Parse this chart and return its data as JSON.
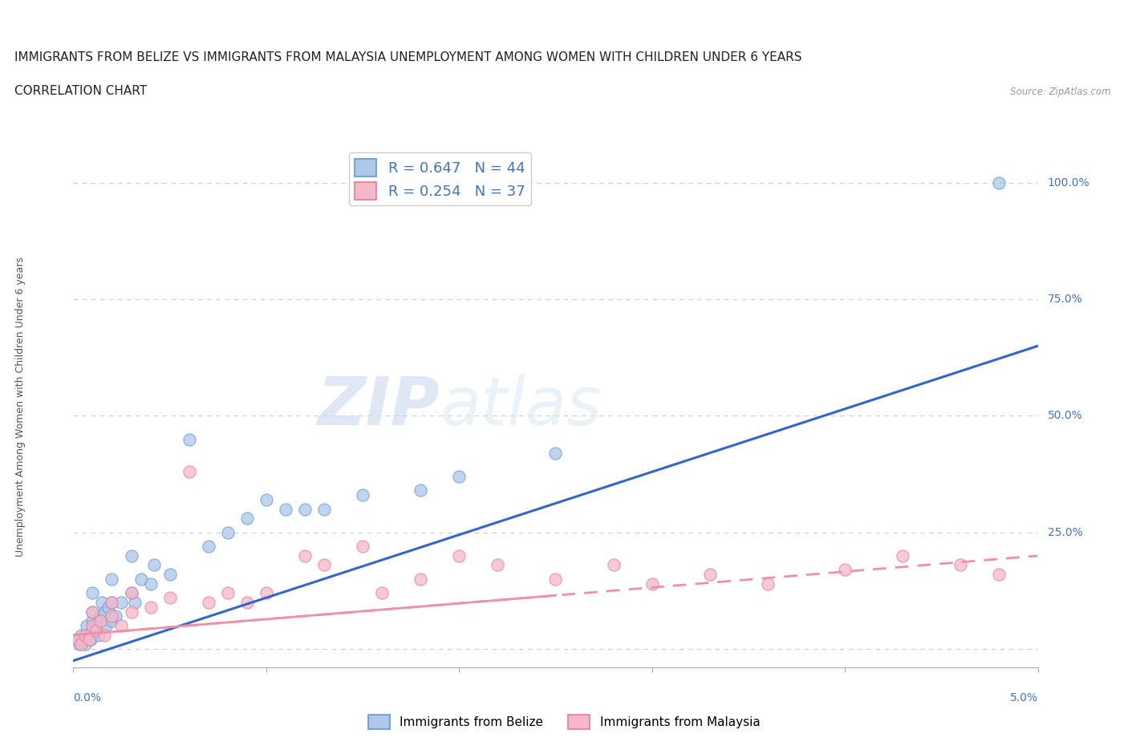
{
  "title_line1": "IMMIGRANTS FROM BELIZE VS IMMIGRANTS FROM MALAYSIA UNEMPLOYMENT AMONG WOMEN WITH CHILDREN UNDER 6 YEARS",
  "title_line2": "CORRELATION CHART",
  "source": "Source: ZipAtlas.com",
  "ylabel": "Unemployment Among Women with Children Under 6 years",
  "watermark_part1": "ZIP",
  "watermark_part2": "atlas",
  "legend_belize": {
    "R": 0.647,
    "N": 44,
    "color": "#aec6e8",
    "border": "#5b9bd5"
  },
  "legend_malaysia": {
    "R": 0.254,
    "N": 37,
    "color": "#f5b8c8",
    "border": "#e87898"
  },
  "belize_fill_color": "#aec6e8",
  "belize_edge_color": "#5b9bd5",
  "malaysia_fill_color": "#f5b8c8",
  "malaysia_edge_color": "#e87898",
  "belize_line_color": "#3366cc",
  "malaysia_line_color": "#f090a8",
  "yticks": [
    0.0,
    0.25,
    0.5,
    0.75,
    1.0
  ],
  "ytick_labels": [
    "",
    "25.0%",
    "50.0%",
    "75.0%",
    "100.0%"
  ],
  "xlim": [
    0.0,
    0.05
  ],
  "ylim": [
    -0.04,
    1.08
  ],
  "belize_scatter_x": [
    0.0002,
    0.0003,
    0.0004,
    0.0005,
    0.0006,
    0.0007,
    0.0008,
    0.0009,
    0.001,
    0.001,
    0.001,
    0.001,
    0.0012,
    0.0013,
    0.0014,
    0.0015,
    0.0016,
    0.0017,
    0.0018,
    0.002,
    0.002,
    0.002,
    0.0022,
    0.0025,
    0.003,
    0.003,
    0.0032,
    0.0035,
    0.004,
    0.0042,
    0.005,
    0.006,
    0.007,
    0.008,
    0.009,
    0.01,
    0.011,
    0.012,
    0.013,
    0.015,
    0.018,
    0.02,
    0.025,
    0.048
  ],
  "belize_scatter_y": [
    0.02,
    0.01,
    0.03,
    0.02,
    0.01,
    0.05,
    0.03,
    0.02,
    0.04,
    0.06,
    0.08,
    0.12,
    0.05,
    0.03,
    0.07,
    0.1,
    0.08,
    0.05,
    0.09,
    0.06,
    0.1,
    0.15,
    0.07,
    0.1,
    0.12,
    0.2,
    0.1,
    0.15,
    0.14,
    0.18,
    0.16,
    0.45,
    0.22,
    0.25,
    0.28,
    0.32,
    0.3,
    0.3,
    0.3,
    0.33,
    0.34,
    0.37,
    0.42,
    1.0
  ],
  "malaysia_scatter_x": [
    0.0002,
    0.0004,
    0.0006,
    0.0008,
    0.001,
    0.001,
    0.0012,
    0.0014,
    0.0016,
    0.002,
    0.002,
    0.0025,
    0.003,
    0.003,
    0.004,
    0.005,
    0.006,
    0.007,
    0.008,
    0.009,
    0.01,
    0.012,
    0.013,
    0.015,
    0.016,
    0.018,
    0.02,
    0.022,
    0.025,
    0.028,
    0.03,
    0.033,
    0.036,
    0.04,
    0.043,
    0.046,
    0.048
  ],
  "malaysia_scatter_y": [
    0.02,
    0.01,
    0.03,
    0.02,
    0.05,
    0.08,
    0.04,
    0.06,
    0.03,
    0.07,
    0.1,
    0.05,
    0.08,
    0.12,
    0.09,
    0.11,
    0.38,
    0.1,
    0.12,
    0.1,
    0.12,
    0.2,
    0.18,
    0.22,
    0.12,
    0.15,
    0.2,
    0.18,
    0.15,
    0.18,
    0.14,
    0.16,
    0.14,
    0.17,
    0.2,
    0.18,
    0.16
  ],
  "title_fontsize": 11,
  "axis_label_fontsize": 9,
  "tick_fontsize": 10,
  "background_color": "#ffffff",
  "grid_color": "#cccccc",
  "right_ytick_color": "#4472c4",
  "legend_text_color": "#4472c4"
}
